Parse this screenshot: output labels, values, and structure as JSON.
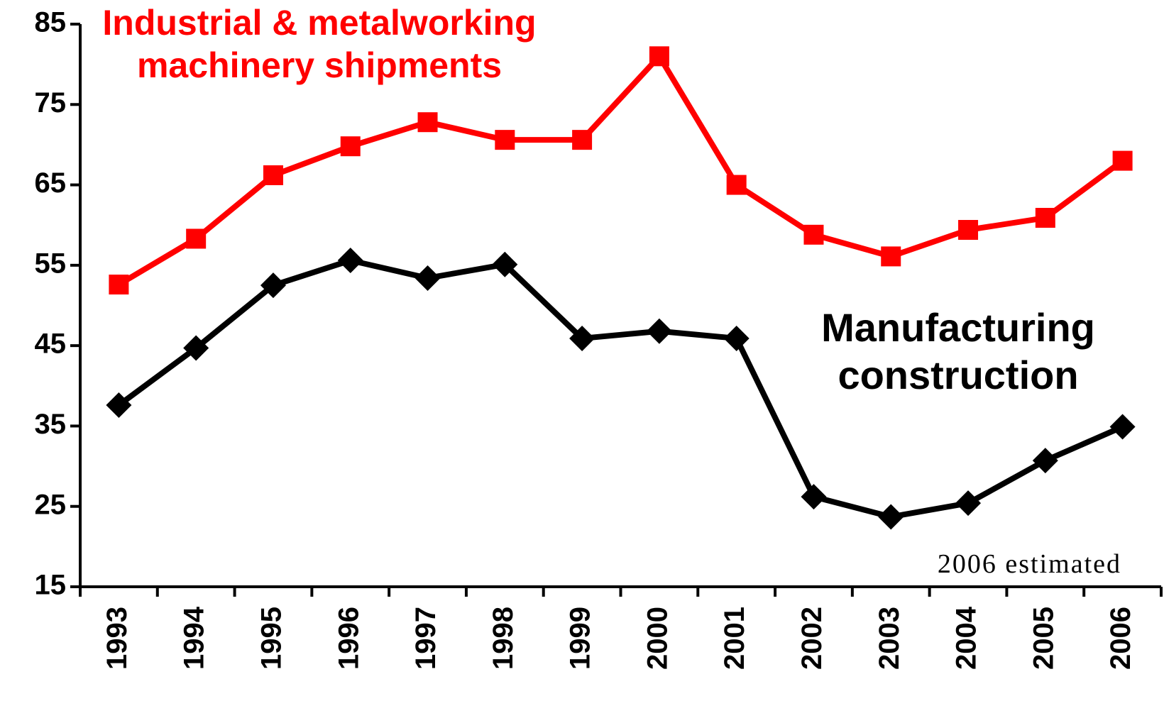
{
  "chart_data": {
    "type": "line",
    "categories": [
      "1993",
      "1994",
      "1995",
      "1996",
      "1997",
      "1998",
      "1999",
      "2000",
      "2001",
      "2002",
      "2003",
      "2004",
      "2005",
      "2006"
    ],
    "series": [
      {
        "name": "Industrial & metalworking machinery shipments",
        "color": "#ff0000",
        "marker": "square",
        "values": [
          52.6,
          58.3,
          66.2,
          69.8,
          72.8,
          70.6,
          70.6,
          81.0,
          65.0,
          58.8,
          56.1,
          59.4,
          60.9,
          68.0
        ]
      },
      {
        "name": "Manufacturing construction",
        "color": "#000000",
        "marker": "diamond",
        "values": [
          37.6,
          44.7,
          52.5,
          55.6,
          53.4,
          55.1,
          45.9,
          46.8,
          45.9,
          26.2,
          23.7,
          25.4,
          30.7,
          34.9
        ]
      }
    ],
    "annotation": "2006 estimated",
    "ylim": [
      15,
      85
    ],
    "yticks": [
      15,
      25,
      35,
      45,
      55,
      65,
      75,
      85
    ],
    "grid": false
  }
}
